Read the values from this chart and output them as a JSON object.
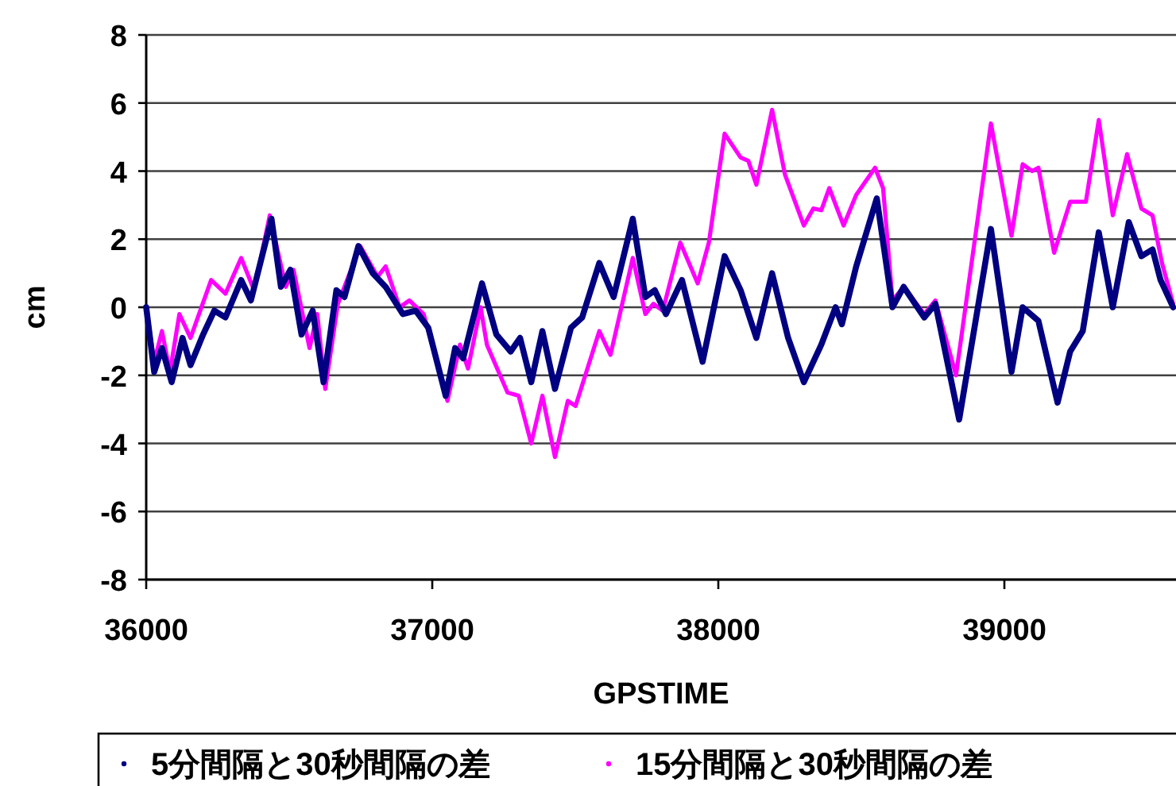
{
  "chart_data": {
    "type": "line",
    "xlabel": "GPSTIME",
    "ylabel": "cm",
    "xlim": [
      36000,
      39600
    ],
    "xticks": [
      36000,
      37000,
      38000,
      39000
    ],
    "ylim": [
      -8,
      8
    ],
    "yticks": [
      -8,
      -6,
      -4,
      -2,
      0,
      2,
      4,
      6,
      8
    ],
    "grid": "y",
    "legend": "bottom",
    "marker": "none",
    "line_style": "solid",
    "series": [
      {
        "name": "5分間隔と30秒間隔の差",
        "color": "#000080",
        "x": [
          36000,
          36028,
          36055,
          36089,
          36127,
          36155,
          36199,
          36238,
          36277,
          36332,
          36366,
          36438,
          36471,
          36504,
          36543,
          36582,
          36620,
          36665,
          36693,
          36742,
          36792,
          36837,
          36897,
          36942,
          36986,
          37047,
          37080,
          37108,
          37174,
          37224,
          37274,
          37307,
          37346,
          37385,
          37429,
          37485,
          37524,
          37584,
          37634,
          37701,
          37745,
          37778,
          37817,
          37873,
          37945,
          38022,
          38078,
          38133,
          38188,
          38244,
          38299,
          38360,
          38410,
          38432,
          38482,
          38554,
          38609,
          38648,
          38720,
          38759,
          38842,
          38953,
          39025,
          39064,
          39119,
          39186,
          39230,
          39274,
          39330,
          39379,
          39435,
          39479,
          39518,
          39546,
          39590
        ],
        "values": [
          0,
          -1.9,
          -1.2,
          -2.2,
          -0.9,
          -1.7,
          -0.8,
          -0.1,
          -0.3,
          0.8,
          0.2,
          2.6,
          0.6,
          1.1,
          -0.8,
          -0.1,
          -2.2,
          0.5,
          0.3,
          1.8,
          1.0,
          0.6,
          -0.2,
          -0.1,
          -0.6,
          -2.6,
          -1.2,
          -1.5,
          0.7,
          -0.8,
          -1.3,
          -0.9,
          -2.2,
          -0.7,
          -2.4,
          -0.6,
          -0.3,
          1.3,
          0.3,
          2.6,
          0.3,
          0.5,
          -0.2,
          0.8,
          -1.6,
          1.5,
          0.5,
          -0.9,
          1.0,
          -0.9,
          -2.2,
          -1.1,
          0,
          -0.5,
          1.2,
          3.2,
          0,
          0.6,
          -0.3,
          0.1,
          -3.3,
          2.3,
          -1.9,
          0,
          -0.4,
          -2.8,
          -1.3,
          -0.7,
          2.2,
          0,
          2.5,
          1.5,
          1.7,
          0.8,
          0
        ]
      },
      {
        "name": "15分間隔と30秒間隔の差",
        "color": "#ff00ff",
        "x": [
          36000,
          36028,
          36055,
          36083,
          36116,
          36155,
          36227,
          36277,
          36332,
          36377,
          36432,
          36488,
          36515,
          36571,
          36598,
          36626,
          36670,
          36748,
          36809,
          36837,
          36886,
          36920,
          36970,
          37053,
          37097,
          37125,
          37169,
          37191,
          37263,
          37302,
          37346,
          37385,
          37429,
          37474,
          37501,
          37584,
          37623,
          37701,
          37745,
          37773,
          37806,
          37867,
          37928,
          37967,
          38022,
          38078,
          38105,
          38133,
          38188,
          38233,
          38299,
          38332,
          38360,
          38388,
          38438,
          38482,
          38548,
          38576,
          38609,
          38648,
          38720,
          38759,
          38831,
          38953,
          39025,
          39064,
          39097,
          39119,
          39174,
          39230,
          39285,
          39330,
          39379,
          39429,
          39479,
          39518,
          39551,
          39590
        ],
        "values": [
          0,
          -1.6,
          -0.7,
          -1.9,
          -0.2,
          -0.9,
          0.8,
          0.4,
          1.45,
          0.5,
          2.7,
          0.6,
          1.1,
          -1.2,
          -0.2,
          -2.4,
          0.1,
          1.8,
          0.9,
          1.2,
          0,
          0.2,
          -0.2,
          -2.75,
          -1.1,
          -1.8,
          0,
          -1.1,
          -2.5,
          -2.6,
          -4.0,
          -2.6,
          -4.4,
          -2.75,
          -2.9,
          -0.7,
          -1.4,
          1.45,
          -0.2,
          0.1,
          -0.1,
          1.9,
          0.7,
          1.9,
          5.1,
          4.4,
          4.3,
          3.6,
          5.8,
          3.9,
          2.4,
          2.9,
          2.85,
          3.5,
          2.4,
          3.3,
          4.1,
          3.5,
          0.2,
          0.6,
          -0.2,
          0.2,
          -2.0,
          5.4,
          2.1,
          4.2,
          4.0,
          4.1,
          1.6,
          3.1,
          3.1,
          5.5,
          2.7,
          4.5,
          2.9,
          2.7,
          1.3,
          0.1
        ]
      }
    ]
  }
}
